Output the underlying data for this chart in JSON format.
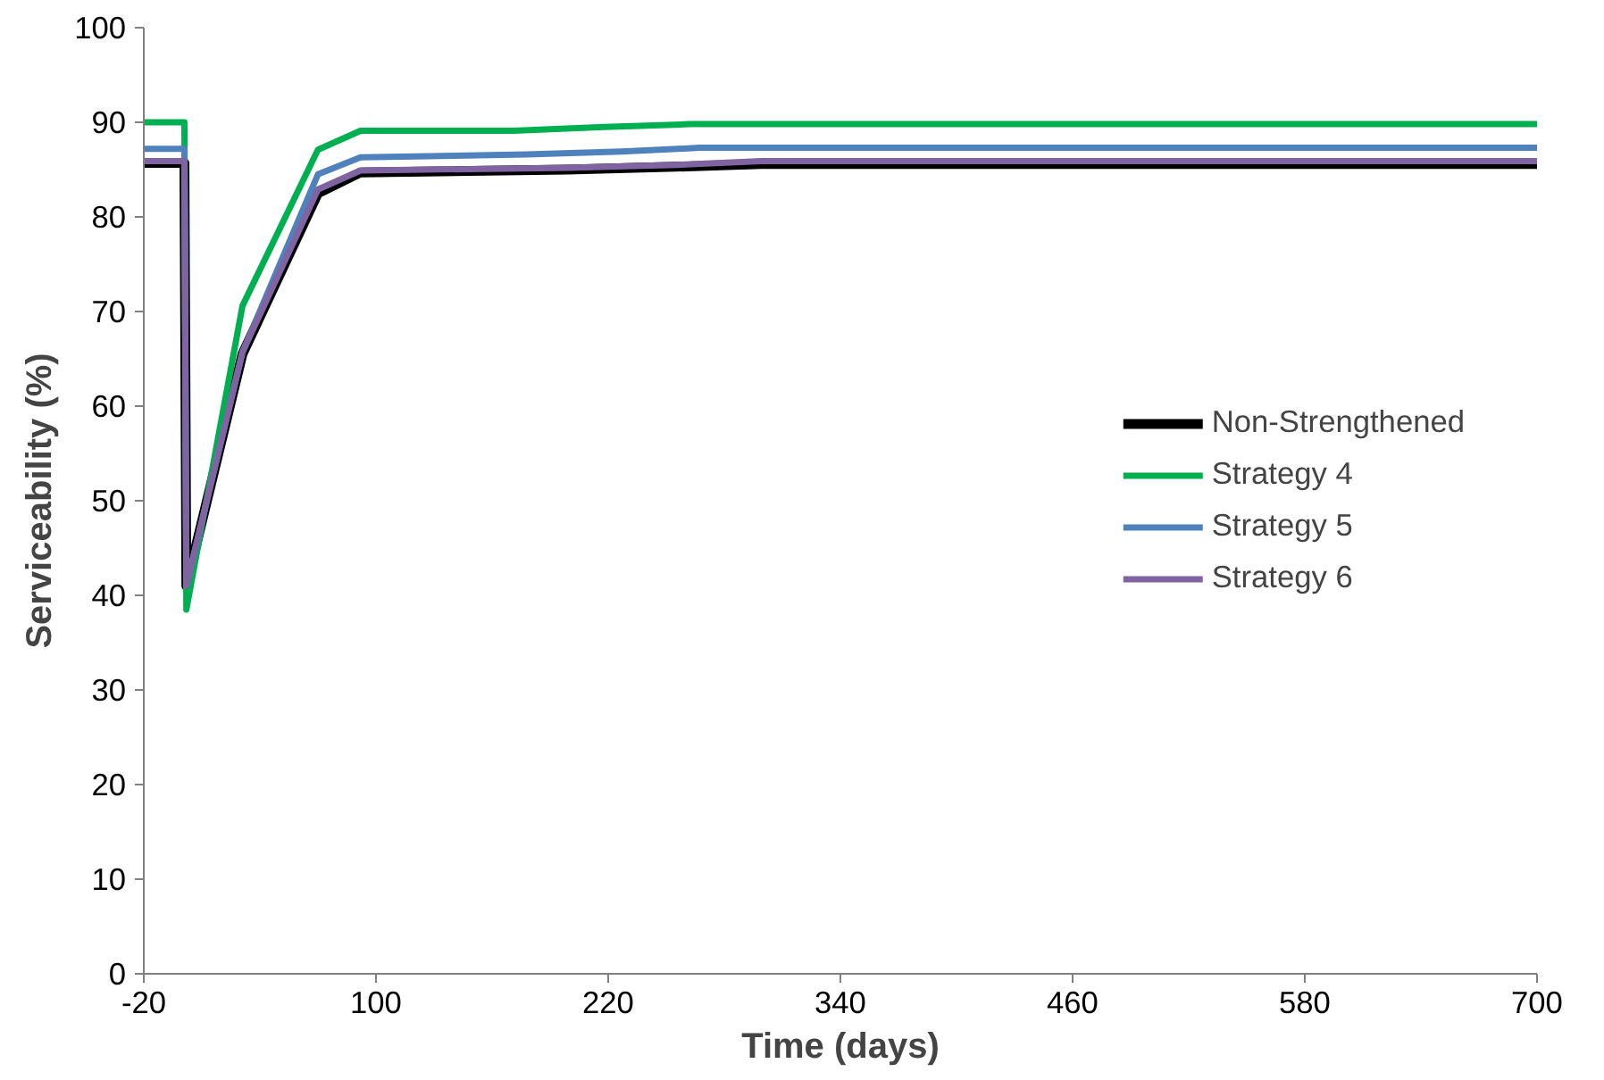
{
  "chart_data": {
    "type": "line",
    "xlabel": "Time (days)",
    "ylabel": "Serviceability (%)",
    "xlim": [
      -20,
      700
    ],
    "xticks": [
      -20,
      100,
      220,
      340,
      460,
      580,
      700
    ],
    "ylim": [
      0,
      100
    ],
    "yticks": [
      0,
      10,
      20,
      30,
      40,
      50,
      60,
      70,
      80,
      90,
      100
    ],
    "grid": false,
    "legend": "right",
    "marker": "none",
    "line_style": "solid",
    "series": [
      {
        "name": "Non-Strengthened",
        "color": "#000000",
        "x": [
          -20,
          1,
          2,
          31,
          70,
          92,
          199,
          255,
          299,
          700
        ],
        "values": [
          85.7,
          85.7,
          41,
          65.5,
          82.5,
          84.7,
          85.0,
          85.3,
          85.6,
          85.6
        ]
      },
      {
        "name": "Strategy 4",
        "color": "#00b050",
        "x": [
          -20,
          1,
          2,
          31,
          70,
          92,
          171,
          218,
          262,
          700
        ],
        "values": [
          90,
          90,
          38.5,
          70.6,
          87.1,
          89.1,
          89.1,
          89.5,
          89.8,
          89.8
        ]
      },
      {
        "name": "Strategy 5",
        "color": "#4f81bd",
        "x": [
          -20,
          1,
          2,
          31,
          70,
          92,
          178,
          227,
          267,
          700
        ],
        "values": [
          87.2,
          87.2,
          41,
          65.7,
          84.5,
          86.3,
          86.6,
          86.9,
          87.3,
          87.3
        ]
      },
      {
        "name": "Strategy 6",
        "color": "#8064a2",
        "x": [
          -20,
          1,
          2,
          31,
          70,
          92,
          199,
          255,
          299,
          700
        ],
        "values": [
          85.9,
          85.9,
          41,
          65.7,
          82.9,
          84.9,
          85.2,
          85.5,
          85.9,
          85.9
        ]
      }
    ]
  }
}
